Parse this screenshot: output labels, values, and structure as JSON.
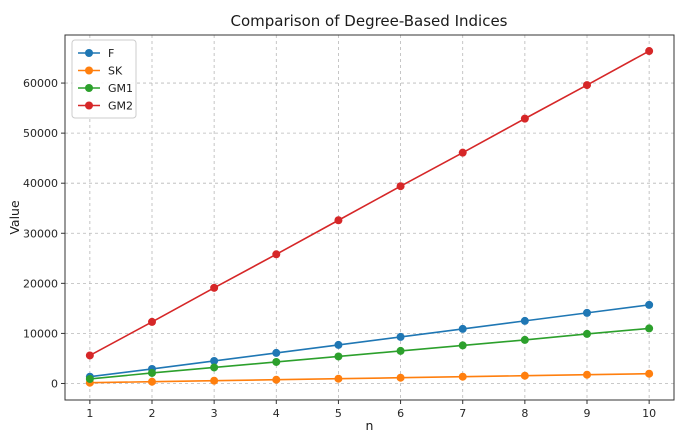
{
  "chart_data": {
    "type": "line",
    "title": "Comparison of Degree-Based Indices",
    "xlabel": "n",
    "ylabel": "Value",
    "x": [
      1,
      2,
      3,
      4,
      5,
      6,
      7,
      8,
      9,
      10
    ],
    "xlim": [
      0.6,
      10.4
    ],
    "ylim": [
      -3300,
      69600
    ],
    "yticks": [
      0,
      10000,
      20000,
      30000,
      40000,
      50000,
      60000
    ],
    "grid": true,
    "legend_position": "top-left",
    "series": [
      {
        "name": "F",
        "color": "#1f77b4",
        "values": [
          1350,
          2900,
          4500,
          6100,
          7700,
          9300,
          10900,
          12500,
          14100,
          15700
        ]
      },
      {
        "name": "SK",
        "color": "#ff7f0e",
        "values": [
          150,
          350,
          550,
          750,
          950,
          1150,
          1350,
          1550,
          1750,
          1950
        ]
      },
      {
        "name": "GM1",
        "color": "#2ca02c",
        "values": [
          900,
          2100,
          3200,
          4300,
          5400,
          6500,
          7600,
          8700,
          9900,
          11000
        ]
      },
      {
        "name": "GM2",
        "color": "#d62728",
        "values": [
          5600,
          12300,
          19100,
          25800,
          32600,
          39400,
          46100,
          52900,
          59600,
          66400
        ]
      }
    ]
  }
}
